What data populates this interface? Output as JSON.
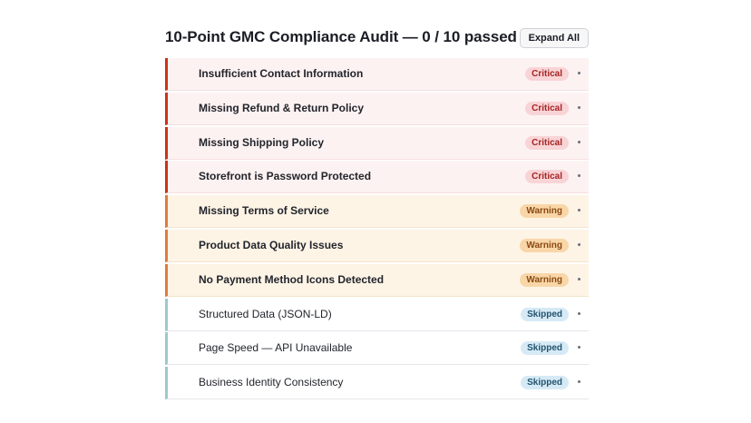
{
  "header": {
    "title": "10-Point GMC Compliance Audit — 0 / 10 passed",
    "expand_all_label": "Expand All"
  },
  "colors": {
    "critical_accent": "#cc3214",
    "warning_accent": "#e07c3c",
    "skipped_accent": "#9fc8cf",
    "critical_bg": "#fdf2f2",
    "warning_bg": "#fdf4e6"
  },
  "checks": [
    {
      "label": "Insufficient Contact Information",
      "status": "Critical",
      "severity": "critical"
    },
    {
      "label": "Missing Refund & Return Policy",
      "status": "Critical",
      "severity": "critical"
    },
    {
      "label": "Missing Shipping Policy",
      "status": "Critical",
      "severity": "critical"
    },
    {
      "label": "Storefront is Password Protected",
      "status": "Critical",
      "severity": "critical"
    },
    {
      "label": "Missing Terms of Service",
      "status": "Warning",
      "severity": "warning"
    },
    {
      "label": "Product Data Quality Issues",
      "status": "Warning",
      "severity": "warning"
    },
    {
      "label": "No Payment Method Icons Detected",
      "status": "Warning",
      "severity": "warning"
    },
    {
      "label": "Structured Data (JSON-LD)",
      "status": "Skipped",
      "severity": "skipped"
    },
    {
      "label": "Page Speed — API Unavailable",
      "status": "Skipped",
      "severity": "skipped"
    },
    {
      "label": "Business Identity Consistency",
      "status": "Skipped",
      "severity": "skipped"
    }
  ]
}
